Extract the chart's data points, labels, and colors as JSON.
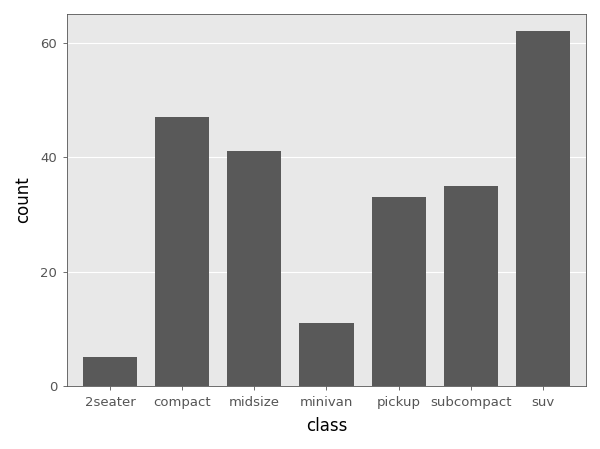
{
  "categories": [
    "2seater",
    "compact",
    "midsize",
    "minivan",
    "pickup",
    "subcompact",
    "suv"
  ],
  "values": [
    5,
    47,
    41,
    11,
    33,
    35,
    62
  ],
  "bar_color": "#595959",
  "bar_edgecolor": "#595959",
  "xlabel": "class",
  "ylabel": "count",
  "xlabel_fontsize": 12,
  "ylabel_fontsize": 12,
  "tick_fontsize": 9.5,
  "ylim": [
    0,
    65
  ],
  "yticks": [
    0,
    20,
    40,
    60
  ],
  "panel_background": "#e8e8e8",
  "figure_background": "#ffffff",
  "grid_color": "#ffffff",
  "bar_width": 0.75
}
